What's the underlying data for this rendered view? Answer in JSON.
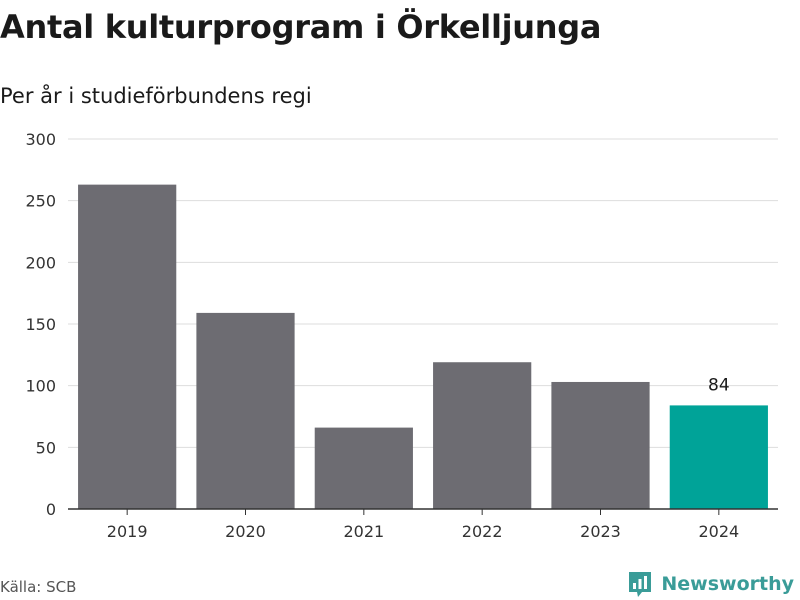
{
  "title": "Antal kulturprogram i Örkelljunga",
  "subtitle": "Per år i studieförbundens regi",
  "source": "Källa: SCB",
  "brand": {
    "name": "Newsworthy",
    "icon": "newsworthy-logo-icon"
  },
  "colors": {
    "bar": "#6d6c72",
    "highlight": "#00a398",
    "grid": "#dddddd",
    "axis": "#333333",
    "brand": "#3a9c98"
  },
  "chart_data": {
    "type": "bar",
    "categories": [
      "2019",
      "2020",
      "2021",
      "2022",
      "2023",
      "2024"
    ],
    "values": [
      263,
      159,
      66,
      119,
      103,
      84
    ],
    "highlight_index": 5,
    "data_labels": [
      {
        "index": 5,
        "text": "84"
      }
    ],
    "ylim": [
      0,
      300
    ],
    "yticks": [
      0,
      50,
      100,
      150,
      200,
      250,
      300
    ],
    "grid": true
  }
}
